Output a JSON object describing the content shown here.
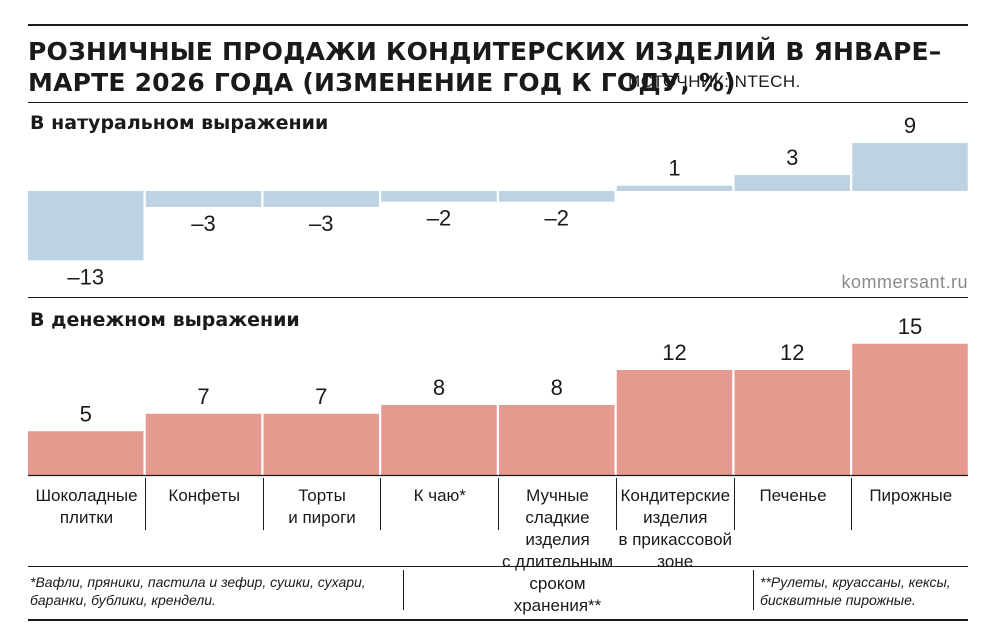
{
  "title": "РОЗНИЧНЫЕ ПРОДАЖИ КОНДИТЕРСКИХ ИЗДЕЛИЙ В ЯНВАРЕ–МАРТЕ 2026 ГОДА (ИЗМЕНЕНИЕ ГОД К ГОДУ, %)",
  "source": "ИСТОЧНИК: NTECH.",
  "watermark": "kommersant.ru",
  "notes": {
    "left": "*Вафли, пряники, пастила и зефир,  сушки, сухари, баранки, бублики, крендели.",
    "right": "**Рулеты, круассаны, кексы, бисквитные пирожные."
  },
  "colors": {
    "volume": "#bdd3e4",
    "value": "#e69a8f",
    "text": "#1a1a1a"
  },
  "chart_data": [
    {
      "type": "bar",
      "title": "В натуральном выражении",
      "categories": [
        "Шоколадные плитки",
        "Конфеты",
        "Торты и пироги",
        "К чаю*",
        "Мучные сладкие изделия с длительным сроком хранения**",
        "Кондитерские изделия в прикассовой зоне",
        "Печенье",
        "Пирожные"
      ],
      "values": [
        -13,
        -3,
        -3,
        -2,
        -2,
        1,
        3,
        9
      ],
      "labels": [
        "–13",
        "–3",
        "–3",
        "–2",
        "–2",
        "1",
        "3",
        "9"
      ]
    },
    {
      "type": "bar",
      "title": "В денежном выражении",
      "categories": [
        "Шоколадные плитки",
        "Конфеты",
        "Торты и пироги",
        "К чаю*",
        "Мучные сладкие изделия с длительным сроком хранения**",
        "Кондитерские изделия в прикассовой зоне",
        "Печенье",
        "Пирожные"
      ],
      "values": [
        5,
        7,
        7,
        8,
        8,
        12,
        12,
        15
      ],
      "labels": [
        "5",
        "7",
        "7",
        "8",
        "8",
        "12",
        "12",
        "15"
      ]
    }
  ],
  "category_lines": [
    [
      "Шоколадные",
      "плитки"
    ],
    [
      "Конфеты"
    ],
    [
      "Торты",
      "и пироги"
    ],
    [
      "К чаю*"
    ],
    [
      "Мучные",
      "сладкие",
      "изделия",
      "с длительным",
      "сроком хранения**"
    ],
    [
      "Кондитерские",
      "изделия",
      "в прикассовой",
      "зоне"
    ],
    [
      "Печенье"
    ],
    [
      "Пирожные"
    ]
  ]
}
